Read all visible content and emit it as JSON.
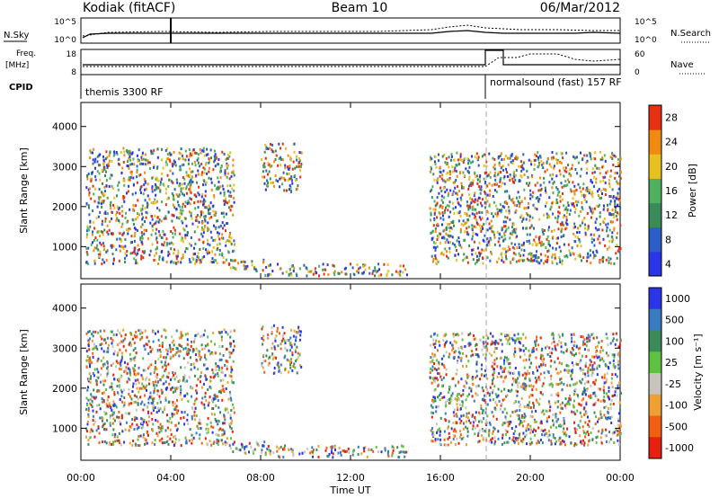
{
  "header": {
    "station": "Kodiak (fitACF)",
    "beam": "Beam 10",
    "date": "06/Mar/2012"
  },
  "summary_labels": {
    "nsky": "N.Sky",
    "nsearch": "N.Search",
    "freq": "Freq.",
    "freq_unit": "[MHz]",
    "nave": "Nave",
    "cpid": "CPID",
    "nsky_ticks": [
      "10^5",
      "10^0"
    ],
    "nsearch_ticks": [
      "10^5",
      "10^0"
    ],
    "freq_ticks": [
      "18",
      "8"
    ],
    "nave_ticks": [
      "60",
      "0"
    ],
    "cpid_segments": [
      "themis 3300 RF",
      "normalsound (fast) 157 RF"
    ]
  },
  "chart_data": [
    {
      "type": "heatmap",
      "name": "power",
      "ylabel": "Slant Range [km]",
      "xlabel": "",
      "ylim": [
        200,
        4600
      ],
      "yticks": [
        "1000",
        "2000",
        "3000",
        "4000"
      ],
      "colorbar_label": "Power [dB]",
      "colorbar_ticks": [
        "4",
        "8",
        "12",
        "16",
        "20",
        "24",
        "28"
      ],
      "colors": [
        "#2a34e8",
        "#2a5ec8",
        "#3a8a5a",
        "#4fb060",
        "#e8c020",
        "#f08a10",
        "#e83010"
      ],
      "scatter_regions": [
        {
          "t0": 0.2,
          "t1": 6.8,
          "r0": 600,
          "r1": 3500
        },
        {
          "t0": 6.5,
          "t1": 8.3,
          "r0": 400,
          "r1": 700
        },
        {
          "t0": 8.0,
          "t1": 9.8,
          "r0": 2400,
          "r1": 3600
        },
        {
          "t0": 8.0,
          "t1": 14.5,
          "r0": 300,
          "r1": 600
        },
        {
          "t0": 15.5,
          "t1": 24.0,
          "r0": 600,
          "r1": 3400
        }
      ]
    },
    {
      "type": "heatmap",
      "name": "velocity",
      "ylabel": "Slant Range [km]",
      "xlabel": "Time UT",
      "ylim": [
        200,
        4600
      ],
      "yticks": [
        "1000",
        "2000",
        "3000",
        "4000"
      ],
      "xticks": [
        "00:00",
        "04:00",
        "08:00",
        "12:00",
        "16:00",
        "20:00",
        "00:00"
      ],
      "colorbar_label": "Velocity [m s⁻¹]",
      "colorbar_ticks": [
        "1000",
        "500",
        "100",
        "25",
        "-25",
        "-100",
        "-500",
        "-1000"
      ],
      "colors": [
        "#2a34e8",
        "#3a7ac0",
        "#3a8a5a",
        "#60c040",
        "#c8c4bc",
        "#f0a030",
        "#f06010",
        "#e82010"
      ],
      "scatter_regions": [
        {
          "t0": 0.2,
          "t1": 6.8,
          "r0": 600,
          "r1": 3500
        },
        {
          "t0": 6.5,
          "t1": 8.3,
          "r0": 400,
          "r1": 700
        },
        {
          "t0": 8.0,
          "t1": 9.8,
          "r0": 2400,
          "r1": 3600
        },
        {
          "t0": 8.0,
          "t1": 14.5,
          "r0": 300,
          "r1": 600
        },
        {
          "t0": 15.5,
          "t1": 24.0,
          "r0": 600,
          "r1": 3400
        }
      ]
    }
  ]
}
